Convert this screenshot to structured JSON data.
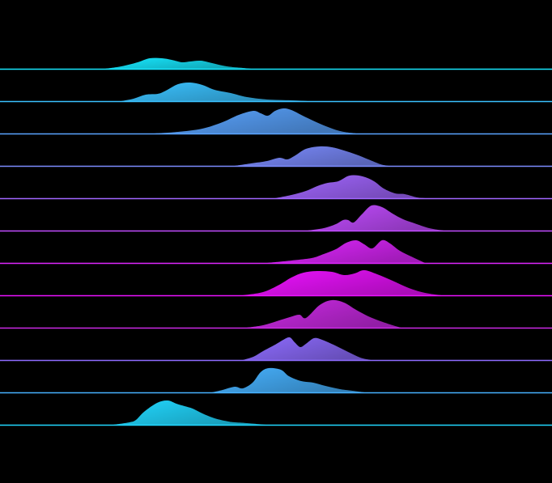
{
  "chart_data": {
    "type": "area",
    "subtype": "ridgeline",
    "background": "#000000",
    "title": "",
    "xlabel": "",
    "ylabel": "",
    "grid": false,
    "legend": "none",
    "xlim": [
      0,
      682
    ],
    "series": [
      {
        "color": "#17e8ff",
        "points": [
          [
            130,
            0
          ],
          [
            150,
            3
          ],
          [
            170,
            8
          ],
          [
            185,
            13
          ],
          [
            200,
            13
          ],
          [
            212,
            11
          ],
          [
            225,
            8
          ],
          [
            235,
            9
          ],
          [
            248,
            10
          ],
          [
            262,
            7
          ],
          [
            280,
            3
          ],
          [
            300,
            1
          ],
          [
            310,
            0
          ]
        ]
      },
      {
        "color": "#3bc2ff",
        "points": [
          [
            150,
            0
          ],
          [
            165,
            3
          ],
          [
            180,
            8
          ],
          [
            195,
            9
          ],
          [
            205,
            13
          ],
          [
            220,
            21
          ],
          [
            235,
            23
          ],
          [
            250,
            20
          ],
          [
            265,
            14
          ],
          [
            285,
            10
          ],
          [
            305,
            5
          ],
          [
            330,
            2
          ],
          [
            360,
            1
          ],
          [
            380,
            0
          ]
        ]
      },
      {
        "color": "#5aa4ff",
        "points": [
          [
            190,
            0
          ],
          [
            220,
            2
          ],
          [
            250,
            6
          ],
          [
            275,
            14
          ],
          [
            295,
            23
          ],
          [
            313,
            28
          ],
          [
            322,
            25
          ],
          [
            331,
            22
          ],
          [
            340,
            28
          ],
          [
            350,
            31
          ],
          [
            360,
            29
          ],
          [
            378,
            20
          ],
          [
            400,
            10
          ],
          [
            420,
            3
          ],
          [
            440,
            0
          ]
        ]
      },
      {
        "color": "#7c8cff",
        "points": [
          [
            290,
            0
          ],
          [
            310,
            3
          ],
          [
            330,
            6
          ],
          [
            345,
            10
          ],
          [
            355,
            8
          ],
          [
            365,
            13
          ],
          [
            378,
            21
          ],
          [
            395,
            24
          ],
          [
            410,
            23
          ],
          [
            425,
            19
          ],
          [
            440,
            14
          ],
          [
            455,
            8
          ],
          [
            470,
            2
          ],
          [
            480,
            0
          ]
        ]
      },
      {
        "color": "#a266ff",
        "points": [
          [
            340,
            0
          ],
          [
            360,
            4
          ],
          [
            378,
            9
          ],
          [
            392,
            15
          ],
          [
            405,
            19
          ],
          [
            418,
            21
          ],
          [
            432,
            28
          ],
          [
            448,
            27
          ],
          [
            462,
            21
          ],
          [
            474,
            12
          ],
          [
            488,
            6
          ],
          [
            500,
            5
          ],
          [
            515,
            1
          ],
          [
            525,
            0
          ]
        ]
      },
      {
        "color": "#c24cff",
        "points": [
          [
            380,
            0
          ],
          [
            400,
            3
          ],
          [
            415,
            8
          ],
          [
            424,
            13
          ],
          [
            430,
            13
          ],
          [
            437,
            10
          ],
          [
            447,
            20
          ],
          [
            459,
            31
          ],
          [
            472,
            29
          ],
          [
            485,
            21
          ],
          [
            498,
            14
          ],
          [
            512,
            9
          ],
          [
            530,
            3
          ],
          [
            548,
            0
          ]
        ]
      },
      {
        "color": "#df26ff",
        "points": [
          [
            330,
            0
          ],
          [
            360,
            3
          ],
          [
            385,
            6
          ],
          [
            400,
            11
          ],
          [
            415,
            17
          ],
          [
            428,
            25
          ],
          [
            440,
            28
          ],
          [
            450,
            23
          ],
          [
            460,
            18
          ],
          [
            472,
            28
          ],
          [
            482,
            24
          ],
          [
            494,
            15
          ],
          [
            510,
            7
          ],
          [
            525,
            0
          ]
        ]
      },
      {
        "color": "#ec12ff",
        "points": [
          [
            300,
            0
          ],
          [
            325,
            4
          ],
          [
            345,
            13
          ],
          [
            360,
            22
          ],
          [
            375,
            28
          ],
          [
            392,
            30
          ],
          [
            410,
            29
          ],
          [
            425,
            25
          ],
          [
            438,
            27
          ],
          [
            450,
            31
          ],
          [
            466,
            26
          ],
          [
            485,
            18
          ],
          [
            505,
            9
          ],
          [
            525,
            3
          ],
          [
            545,
            0
          ]
        ]
      },
      {
        "color": "#cc2ae6",
        "points": [
          [
            305,
            0
          ],
          [
            325,
            3
          ],
          [
            342,
            8
          ],
          [
            358,
            13
          ],
          [
            370,
            16
          ],
          [
            378,
            12
          ],
          [
            395,
            28
          ],
          [
            410,
            34
          ],
          [
            425,
            31
          ],
          [
            440,
            22
          ],
          [
            455,
            14
          ],
          [
            470,
            8
          ],
          [
            485,
            3
          ],
          [
            495,
            0
          ]
        ]
      },
      {
        "color": "#8e6cff",
        "points": [
          [
            300,
            0
          ],
          [
            313,
            4
          ],
          [
            325,
            11
          ],
          [
            340,
            19
          ],
          [
            350,
            25
          ],
          [
            358,
            28
          ],
          [
            364,
            22
          ],
          [
            371,
            16
          ],
          [
            378,
            20
          ],
          [
            388,
            27
          ],
          [
            398,
            25
          ],
          [
            414,
            18
          ],
          [
            430,
            10
          ],
          [
            445,
            3
          ],
          [
            458,
            0
          ]
        ]
      },
      {
        "color": "#47b2ff",
        "points": [
          [
            262,
            0
          ],
          [
            275,
            3
          ],
          [
            290,
            7
          ],
          [
            300,
            5
          ],
          [
            312,
            12
          ],
          [
            322,
            25
          ],
          [
            332,
            30
          ],
          [
            347,
            28
          ],
          [
            357,
            20
          ],
          [
            372,
            14
          ],
          [
            387,
            12
          ],
          [
            402,
            8
          ],
          [
            420,
            4
          ],
          [
            443,
            1
          ],
          [
            450,
            0
          ]
        ]
      },
      {
        "color": "#22d8ff",
        "points": [
          [
            140,
            0
          ],
          [
            160,
            3
          ],
          [
            168,
            6
          ],
          [
            178,
            16
          ],
          [
            194,
            27
          ],
          [
            207,
            30
          ],
          [
            218,
            26
          ],
          [
            228,
            23
          ],
          [
            238,
            20
          ],
          [
            250,
            14
          ],
          [
            265,
            8
          ],
          [
            282,
            4
          ],
          [
            290,
            3
          ],
          [
            305,
            2
          ],
          [
            328,
            0
          ]
        ]
      }
    ]
  }
}
